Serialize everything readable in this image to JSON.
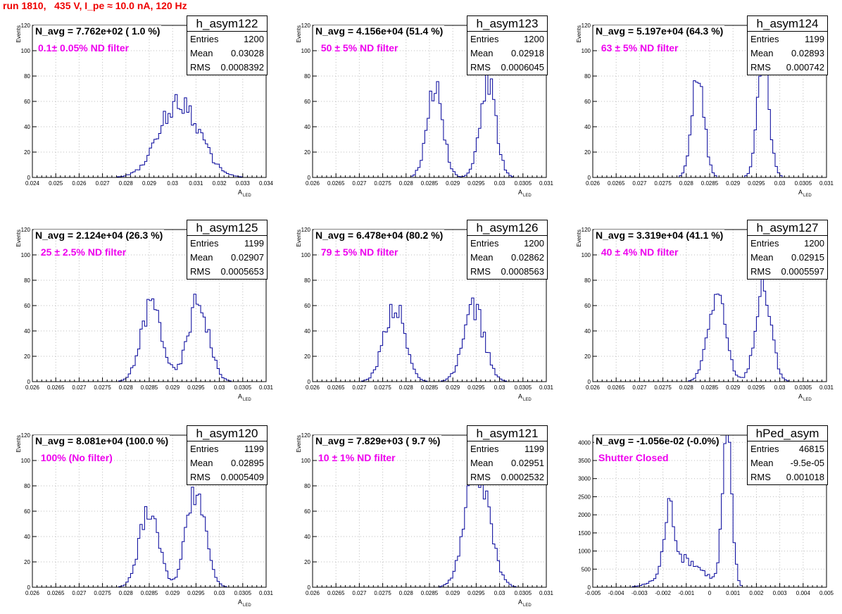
{
  "run_title": "run 1810,   435 V, I_pe ≈ 10.0 nA, 120 Hz",
  "stats_labels": {
    "entries": "Entries",
    "mean": "Mean",
    "rms": "RMS"
  },
  "chart_data": [
    {
      "type": "bar",
      "style": "histogram-step",
      "histogram_name": "h_asym122",
      "header": "N_avg = 7.762e+02 ( 1.0 %)",
      "filter_label": "0.1± 0.05% ND filter",
      "stats": {
        "entries": "1200",
        "mean": "0.03028",
        "rms": "0.0008392"
      },
      "ylabel": "Events",
      "xlabel_main": "A",
      "xlabel_sub": "LED",
      "xlim": [
        0.024,
        0.034
      ],
      "ylim": [
        0,
        120
      ],
      "xticks": [
        0.024,
        0.025,
        0.026,
        0.027,
        0.028,
        0.029,
        0.03,
        0.031,
        0.032,
        0.033,
        0.034
      ],
      "xtick_labels": [
        "0.024",
        "0.025",
        "0.026",
        "0.027",
        "0.028",
        "0.029",
        "0.03",
        "0.031",
        "0.032",
        "0.033",
        "0.034"
      ],
      "yticks": [
        0,
        20,
        40,
        60,
        80,
        100,
        120
      ],
      "ytick_labels": [
        "0",
        "20",
        "40",
        "60",
        "80",
        "100",
        "120"
      ],
      "peaks": [
        {
          "center": 0.0303,
          "sigma": 0.00085,
          "height": 60
        }
      ],
      "bins": 100,
      "seed": 122,
      "grid": true
    },
    {
      "type": "bar",
      "style": "histogram-step",
      "histogram_name": "h_asym123",
      "header": "N_avg = 4.156e+04 (51.4 %)",
      "filter_label": " 50 ± 5% ND filter",
      "stats": {
        "entries": "1200",
        "mean": "0.02918",
        "rms": "0.0006045"
      },
      "ylabel": "Events",
      "xlabel_main": "A",
      "xlabel_sub": "LED",
      "xlim": [
        0.026,
        0.031
      ],
      "ylim": [
        0,
        120
      ],
      "xticks": [
        0.026,
        0.0265,
        0.027,
        0.0275,
        0.028,
        0.0285,
        0.029,
        0.0295,
        0.03,
        0.0305,
        0.031
      ],
      "xtick_labels": [
        "0.026",
        "0.0265",
        "0.027",
        "0.0275",
        "0.028",
        "0.0285",
        "0.029",
        "0.0295",
        "0.03",
        "0.0305",
        "0.031"
      ],
      "yticks": [
        0,
        20,
        40,
        60,
        80,
        100,
        120
      ],
      "ytick_labels": [
        "0",
        "20",
        "40",
        "60",
        "80",
        "100",
        "120"
      ],
      "peaks": [
        {
          "center": 0.02862,
          "sigma": 0.00017,
          "height": 72
        },
        {
          "center": 0.02975,
          "sigma": 0.00017,
          "height": 74
        }
      ],
      "bins": 100,
      "seed": 123,
      "grid": true
    },
    {
      "type": "bar",
      "style": "histogram-step",
      "histogram_name": "h_asym124",
      "header": "N_avg = 5.197e+04 (64.3 %)",
      "filter_label": " 63 ± 5% ND filter",
      "stats": {
        "entries": "1199",
        "mean": "0.02893",
        "rms": "0.000742"
      },
      "ylabel": "Events",
      "xlabel_main": "A",
      "xlabel_sub": "LED",
      "xlim": [
        0.026,
        0.031
      ],
      "ylim": [
        0,
        120
      ],
      "xticks": [
        0.026,
        0.0265,
        0.027,
        0.0275,
        0.028,
        0.0285,
        0.029,
        0.0295,
        0.03,
        0.0305,
        0.031
      ],
      "xtick_labels": [
        "0.026",
        "0.0265",
        "0.027",
        "0.0275",
        "0.028",
        "0.0285",
        "0.029",
        "0.0295",
        "0.03",
        "0.0305",
        "0.031"
      ],
      "yticks": [
        0,
        20,
        40,
        60,
        80,
        100,
        120
      ],
      "ytick_labels": [
        "0",
        "20",
        "40",
        "60",
        "80",
        "100",
        "120"
      ],
      "peaks": [
        {
          "center": 0.02825,
          "sigma": 0.00013,
          "height": 86
        },
        {
          "center": 0.02965,
          "sigma": 0.00013,
          "height": 86
        }
      ],
      "bins": 100,
      "seed": 124,
      "grid": true
    },
    {
      "type": "bar",
      "style": "histogram-step",
      "histogram_name": "h_asym125",
      "header": "N_avg = 2.124e+04 (26.3 %)",
      "filter_label": " 25 ± 2.5% ND filter",
      "stats": {
        "entries": "1199",
        "mean": "0.02907",
        "rms": "0.0005653"
      },
      "ylabel": "Events",
      "xlabel_main": "A",
      "xlabel_sub": "LED",
      "xlim": [
        0.026,
        0.031
      ],
      "ylim": [
        0,
        120
      ],
      "xticks": [
        0.026,
        0.0265,
        0.027,
        0.0275,
        0.028,
        0.0285,
        0.029,
        0.0295,
        0.03,
        0.0305,
        0.031
      ],
      "xtick_labels": [
        "0.026",
        "0.0265",
        "0.027",
        "0.0275",
        "0.028",
        "0.0285",
        "0.029",
        "0.0295",
        "0.03",
        "0.0305",
        "0.031"
      ],
      "yticks": [
        0,
        20,
        40,
        60,
        80,
        100,
        120
      ],
      "ytick_labels": [
        "0",
        "20",
        "40",
        "60",
        "80",
        "100",
        "120"
      ],
      "peaks": [
        {
          "center": 0.02855,
          "sigma": 0.00022,
          "height": 62
        },
        {
          "center": 0.02955,
          "sigma": 0.00022,
          "height": 64
        }
      ],
      "bins": 100,
      "seed": 125,
      "grid": true
    },
    {
      "type": "bar",
      "style": "histogram-step",
      "histogram_name": "h_asym126",
      "header": "N_avg = 6.478e+04 (80.2 %)",
      "filter_label": " 79 ± 5% ND filter",
      "stats": {
        "entries": "1200",
        "mean": "0.02862",
        "rms": "0.0008563"
      },
      "ylabel": "Events",
      "xlabel_main": "A",
      "xlabel_sub": "LED",
      "xlim": [
        0.026,
        0.031
      ],
      "ylim": [
        0,
        120
      ],
      "xticks": [
        0.026,
        0.0265,
        0.027,
        0.0275,
        0.028,
        0.0285,
        0.029,
        0.0295,
        0.03,
        0.0305,
        0.031
      ],
      "xtick_labels": [
        "0.026",
        "0.0265",
        "0.027",
        "0.0275",
        "0.028",
        "0.0285",
        "0.029",
        "0.0295",
        "0.03",
        "0.0305",
        "0.031"
      ],
      "yticks": [
        0,
        20,
        40,
        60,
        80,
        100,
        120
      ],
      "ytick_labels": [
        "0",
        "20",
        "40",
        "60",
        "80",
        "100",
        "120"
      ],
      "peaks": [
        {
          "center": 0.02775,
          "sigma": 0.00022,
          "height": 60
        },
        {
          "center": 0.02945,
          "sigma": 0.00022,
          "height": 58
        }
      ],
      "bins": 100,
      "seed": 126,
      "grid": true
    },
    {
      "type": "bar",
      "style": "histogram-step",
      "histogram_name": "h_asym127",
      "header": "N_avg = 3.319e+04 (41.1 %)",
      "filter_label": " 40 ± 4% ND filter",
      "stats": {
        "entries": "1200",
        "mean": "0.02915",
        "rms": "0.0005597"
      },
      "ylabel": "Events",
      "xlabel_main": "A",
      "xlabel_sub": "LED",
      "xlim": [
        0.026,
        0.031
      ],
      "ylim": [
        0,
        120
      ],
      "xticks": [
        0.026,
        0.0265,
        0.027,
        0.0275,
        0.028,
        0.0285,
        0.029,
        0.0295,
        0.03,
        0.0305,
        0.031
      ],
      "xtick_labels": [
        "0.026",
        "0.0265",
        "0.027",
        "0.0275",
        "0.028",
        "0.0285",
        "0.029",
        "0.0295",
        "0.03",
        "0.0305",
        "0.031"
      ],
      "yticks": [
        0,
        20,
        40,
        60,
        80,
        100,
        120
      ],
      "ytick_labels": [
        "0",
        "20",
        "40",
        "60",
        "80",
        "100",
        "120"
      ],
      "peaks": [
        {
          "center": 0.02865,
          "sigma": 0.00019,
          "height": 68
        },
        {
          "center": 0.02965,
          "sigma": 0.00017,
          "height": 74
        }
      ],
      "bins": 100,
      "seed": 127,
      "grid": true
    },
    {
      "type": "bar",
      "style": "histogram-step",
      "histogram_name": "h_asym120",
      "header": "N_avg = 8.081e+04 (100.0 %)",
      "filter_label": " 100% (No filter)",
      "stats": {
        "entries": "1199",
        "mean": "0.02895",
        "rms": "0.0005409"
      },
      "ylabel": "Events",
      "xlabel_main": "A",
      "xlabel_sub": "LED",
      "xlim": [
        0.026,
        0.031
      ],
      "ylim": [
        0,
        120
      ],
      "xticks": [
        0.026,
        0.0265,
        0.027,
        0.0275,
        0.028,
        0.0285,
        0.029,
        0.0295,
        0.03,
        0.0305,
        0.031
      ],
      "xtick_labels": [
        "0.026",
        "0.0265",
        "0.027",
        "0.0275",
        "0.028",
        "0.0285",
        "0.029",
        "0.0295",
        "0.03",
        "0.0305",
        "0.031"
      ],
      "yticks": [
        0,
        20,
        40,
        60,
        80,
        100,
        120
      ],
      "ytick_labels": [
        "0",
        "20",
        "40",
        "60",
        "80",
        "100",
        "120"
      ],
      "peaks": [
        {
          "center": 0.0285,
          "sigma": 0.0002,
          "height": 64
        },
        {
          "center": 0.0295,
          "sigma": 0.0002,
          "height": 80
        }
      ],
      "bins": 100,
      "seed": 120,
      "grid": true
    },
    {
      "type": "bar",
      "style": "histogram-step",
      "histogram_name": "h_asym121",
      "header": "N_avg = 7.829e+03 ( 9.7 %)",
      "filter_label": "10 ± 1% ND filter",
      "stats": {
        "entries": "1199",
        "mean": "0.02951",
        "rms": "0.0002532"
      },
      "ylabel": "Events",
      "xlabel_main": "A",
      "xlabel_sub": "LED",
      "xlim": [
        0.026,
        0.031
      ],
      "ylim": [
        0,
        120
      ],
      "xticks": [
        0.026,
        0.0265,
        0.027,
        0.0275,
        0.028,
        0.0285,
        0.029,
        0.0295,
        0.03,
        0.0305,
        0.031
      ],
      "xtick_labels": [
        "0.026",
        "0.0265",
        "0.027",
        "0.0275",
        "0.028",
        "0.0285",
        "0.029",
        "0.0295",
        "0.03",
        "0.0305",
        "0.031"
      ],
      "yticks": [
        0,
        20,
        40,
        60,
        80,
        100,
        120
      ],
      "ytick_labels": [
        "0",
        "20",
        "40",
        "60",
        "80",
        "100",
        "120"
      ],
      "peaks": [
        {
          "center": 0.02953,
          "sigma": 0.00025,
          "height": 96
        }
      ],
      "bins": 100,
      "seed": 121,
      "grid": true
    },
    {
      "type": "bar",
      "style": "histogram-step",
      "histogram_name": "hPed_asym",
      "header": "N_avg = -1.056e-02 (-0.0%)",
      "filter_label": "Shutter Closed",
      "stats": {
        "entries": "46815",
        "mean": "-9.5e-05",
        "rms": "0.001018"
      },
      "ylabel": "",
      "xlabel_main": "",
      "xlabel_sub": "",
      "xlim": [
        -0.005,
        0.005
      ],
      "ylim": [
        0,
        4200
      ],
      "xticks": [
        -0.005,
        -0.004,
        -0.003,
        -0.002,
        -0.001,
        0,
        0.001,
        0.002,
        0.003,
        0.004,
        0.005
      ],
      "xtick_labels": [
        "-0.005",
        "-0.004",
        "-0.003",
        "-0.002",
        "-0.001",
        "0",
        "0.001",
        "0.002",
        "0.003",
        "0.004",
        "0.005"
      ],
      "yticks": [
        0,
        500,
        1000,
        1500,
        2000,
        2500,
        3000,
        3500,
        4000
      ],
      "ytick_labels": [
        "0",
        "500",
        "1000",
        "1500",
        "2000",
        "2500",
        "3000",
        "3500",
        "4000"
      ],
      "peaks": [
        {
          "center": -0.00172,
          "sigma": 0.00022,
          "height": 1650
        },
        {
          "center": -0.0011,
          "sigma": 0.0008,
          "height": 750
        },
        {
          "center": 0.00075,
          "sigma": 0.0002,
          "height": 4000
        }
      ],
      "bins": 100,
      "seed": 129,
      "grid": true
    }
  ]
}
